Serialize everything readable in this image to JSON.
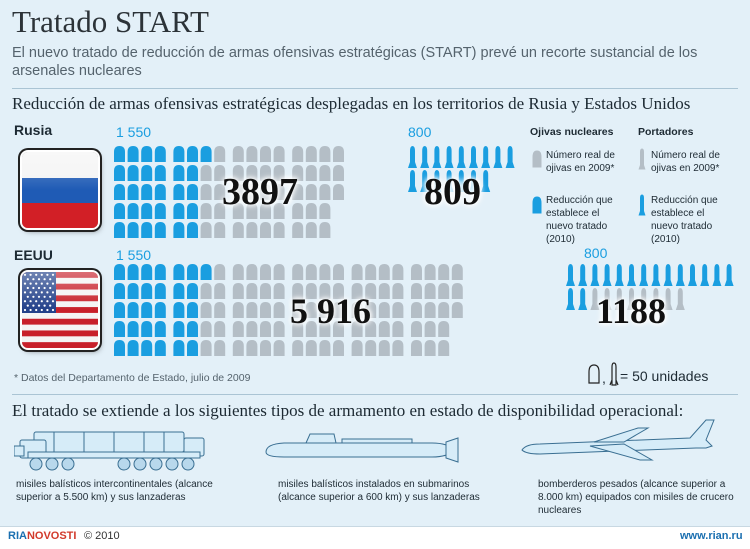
{
  "title": "Tratado START",
  "subtitle": "El nuevo tratado de reducción de armas ofensivas estratégicas (START) prevé un recorte sustancial de los arsenales nucleares",
  "section_heading": "Reducción de armas ofensivas estratégicas desplegadas en los territorios de Rusia y Estados Unidos",
  "russia": {
    "label": "Rusia",
    "warheads_limit_label": "1 550",
    "warheads_actual_label": "3897",
    "carriers_limit_label": "800",
    "carriers_actual_label": "809",
    "warheads_actual": 3897,
    "warheads_limit": 1550,
    "carriers_actual": 809,
    "carriers_limit": 800
  },
  "usa": {
    "label": "EEUU",
    "warheads_limit_label": "1 550",
    "warheads_actual_label": "5 916",
    "carriers_limit_label": "800",
    "carriers_actual_label": "1188",
    "warheads_actual": 5916,
    "warheads_limit": 1550,
    "carriers_actual": 1188,
    "carriers_limit": 800
  },
  "legend": {
    "warheads_heading": "Ojivas nucleares",
    "carriers_heading": "Portadores",
    "warheads_actual": "Número real de ojivas en 2009*",
    "warheads_reduction": "Reducción que establece el nuevo tratado (2010)",
    "carriers_actual": "Número real de ojivas en 2009*",
    "carriers_reduction": "Reducción que establece el nuevo tratado (2010)"
  },
  "footnote": "* Datos del Departamento de Estado, julio de 2009",
  "unit_legend": "= 50 unidades",
  "unit_separator": ",",
  "section2_heading": "El tratado se extiende a los siguientes tipos de armamento en estado de disponibilidad operacional:",
  "weapons": [
    {
      "name": "icbm",
      "caption": "misiles balísticos intercontinentales (alcance superior a 5.500 km) y sus lanzaderas"
    },
    {
      "name": "slbm",
      "caption": "misiles balísticos instalados en submarinos (alcance superior a 600 km) y sus lanzaderas"
    },
    {
      "name": "bomber",
      "caption": "bomberderos pesados (alcance superior a 8.000 km) equipados con misiles de crucero nucleares"
    }
  ],
  "footer": {
    "logo_ria": "RIA",
    "logo_novosti": "NOVOSTI",
    "copyright": "© 2010",
    "site": "www.rian.ru"
  },
  "colors": {
    "background": "#e3f0f8",
    "reduction_blue": "#1a9ee0",
    "actual_gray": "#b4bec6",
    "title": "#2c3338"
  }
}
